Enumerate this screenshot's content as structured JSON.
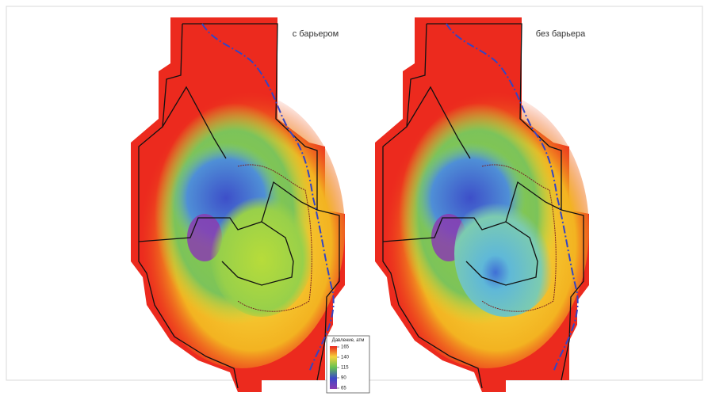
{
  "maps": [
    {
      "label": "с барьером"
    },
    {
      "label": "без барьера"
    }
  ],
  "legend": {
    "title": "Давление, атм",
    "ticks": [
      165,
      140,
      115,
      90,
      65
    ]
  }
}
